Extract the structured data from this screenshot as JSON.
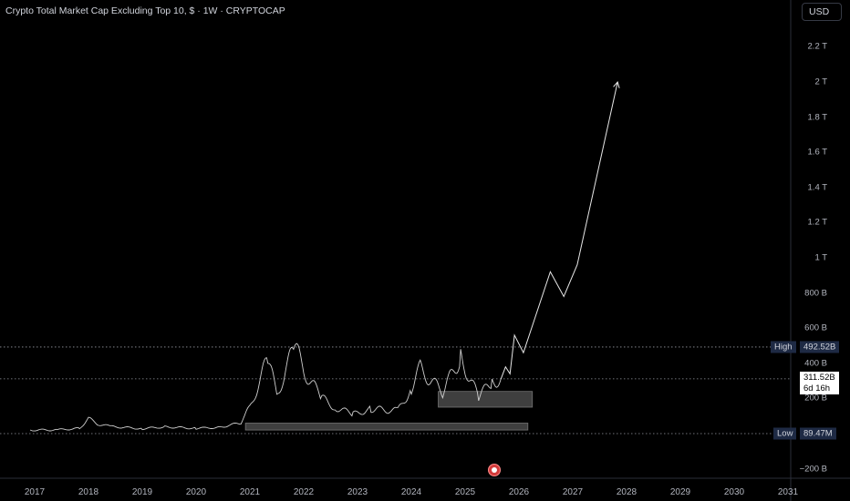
{
  "header": {
    "title": "Crypto Total Market Cap Excluding Top 10, $ · 1W · CRYPTOCAP",
    "currency": "USD"
  },
  "chart_data": {
    "type": "line",
    "title": "Crypto Total Market Cap Excluding Top 10, $ · 1W · CRYPTOCAP",
    "y_unit": "USD",
    "y_ticks": [
      "2.2 T",
      "2 T",
      "1.8 T",
      "1.6 T",
      "1.4 T",
      "1.2 T",
      "1 T",
      "800 B",
      "600 B",
      "400 B",
      "200 B",
      "−200 B"
    ],
    "x_ticks": [
      "2017",
      "2018",
      "2019",
      "2020",
      "2021",
      "2022",
      "2023",
      "2024",
      "2025",
      "2026",
      "2027",
      "2028",
      "2029",
      "2030",
      "2031"
    ],
    "ylim": [
      -250000000000,
      2350000000000
    ],
    "series": [
      {
        "kind": "price",
        "points": [
          {
            "x": "2016-12",
            "y": 20000000000
          },
          {
            "x": "2017-06",
            "y": 21000000000
          },
          {
            "x": "2017-11",
            "y": 30000000000
          },
          {
            "x": "2018-01",
            "y": 85000000000
          },
          {
            "x": "2018-03",
            "y": 55000000000
          },
          {
            "x": "2018-06",
            "y": 40000000000
          },
          {
            "x": "2019-01",
            "y": 28000000000
          },
          {
            "x": "2019-06",
            "y": 38000000000
          },
          {
            "x": "2020-01",
            "y": 30000000000
          },
          {
            "x": "2020-06",
            "y": 35000000000
          },
          {
            "x": "2020-11",
            "y": 60000000000
          },
          {
            "x": "2021-01",
            "y": 150000000000
          },
          {
            "x": "2021-05",
            "y": 420000000000
          },
          {
            "x": "2021-07",
            "y": 220000000000
          },
          {
            "x": "2021-11",
            "y": 492520000000
          },
          {
            "x": "2022-01",
            "y": 360000000000
          },
          {
            "x": "2022-05",
            "y": 200000000000
          },
          {
            "x": "2022-08",
            "y": 150000000000
          },
          {
            "x": "2022-12",
            "y": 110000000000
          },
          {
            "x": "2023-04",
            "y": 140000000000
          },
          {
            "x": "2023-10",
            "y": 130000000000
          },
          {
            "x": "2024-01",
            "y": 260000000000
          },
          {
            "x": "2024-03",
            "y": 370000000000
          },
          {
            "x": "2024-08",
            "y": 230000000000
          },
          {
            "x": "2024-12",
            "y": 440000000000
          },
          {
            "x": "2025-04",
            "y": 200000000000
          },
          {
            "x": "2025-07",
            "y": 300000000000
          },
          {
            "x": "2025-09",
            "y": 311520000000
          }
        ]
      },
      {
        "kind": "projection",
        "points": [
          {
            "x": "2025-09",
            "y": 311520000000
          },
          {
            "x": "2025-10",
            "y": 380000000000
          },
          {
            "x": "2025-11",
            "y": 340000000000
          },
          {
            "x": "2025-12",
            "y": 560000000000
          },
          {
            "x": "2026-02",
            "y": 460000000000
          },
          {
            "x": "2026-08",
            "y": 920000000000
          },
          {
            "x": "2026-11",
            "y": 780000000000
          },
          {
            "x": "2027-02",
            "y": 960000000000
          },
          {
            "x": "2027-11",
            "y": 2000000000000
          }
        ]
      }
    ],
    "zones": [
      {
        "x_start": "2020-12",
        "x_end": "2026-03",
        "y_low": 20000000000,
        "y_high": 60000000000
      },
      {
        "x_start": "2024-07",
        "x_end": "2026-04",
        "y_low": 150000000000,
        "y_high": 240000000000
      }
    ],
    "high": {
      "label": "High",
      "value": "492.52B",
      "y": 492520000000
    },
    "low": {
      "label": "Low",
      "value": "89.47M",
      "y": 89470000
    },
    "last_price": {
      "value": "311.52B",
      "countdown": "6d 16h",
      "y": 311520000000
    },
    "grid": false
  }
}
